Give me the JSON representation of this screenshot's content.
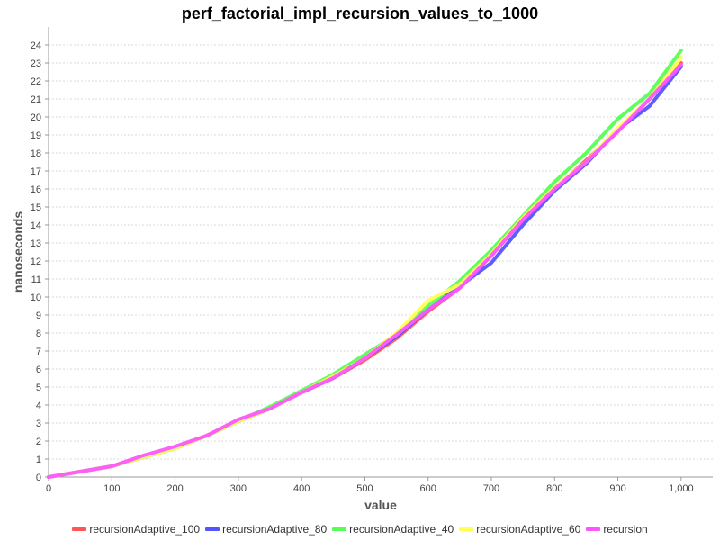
{
  "chart_data": {
    "type": "line",
    "title": "perf_factorial_impl_recursion_values_to_1000",
    "xlabel": "value",
    "ylabel": "nanoseconds",
    "xlim": [
      0,
      1050
    ],
    "ylim": [
      0,
      25
    ],
    "x_ticks": [
      "0",
      "100",
      "200",
      "300",
      "400",
      "500",
      "600",
      "700",
      "800",
      "900",
      "1,000"
    ],
    "y_ticks": [
      "0",
      "1",
      "2",
      "3",
      "4",
      "5",
      "6",
      "7",
      "8",
      "9",
      "10",
      "11",
      "12",
      "13",
      "14",
      "15",
      "16",
      "17",
      "18",
      "19",
      "20",
      "21",
      "22",
      "23",
      "24"
    ],
    "grid": true,
    "legend_position": "bottom",
    "x": [
      0,
      50,
      100,
      150,
      200,
      250,
      300,
      350,
      400,
      450,
      500,
      550,
      600,
      650,
      700,
      750,
      800,
      850,
      900,
      950,
      1000
    ],
    "series": [
      {
        "name": "recursionAdaptive_100",
        "color": "#ff5555",
        "values": [
          0,
          0.3,
          0.6,
          1.1,
          1.6,
          2.3,
          3.1,
          3.8,
          4.7,
          5.5,
          6.5,
          7.7,
          9.2,
          10.5,
          12.3,
          14.3,
          16.0,
          17.6,
          19.2,
          21.0,
          23.0
        ]
      },
      {
        "name": "recursionAdaptive_80",
        "color": "#5555ff",
        "values": [
          0,
          0.3,
          0.6,
          1.1,
          1.6,
          2.3,
          3.1,
          3.8,
          4.7,
          5.5,
          6.6,
          7.8,
          9.3,
          10.6,
          11.9,
          14.0,
          15.9,
          17.4,
          19.3,
          20.6,
          22.8
        ]
      },
      {
        "name": "recursionAdaptive_40",
        "color": "#55ff55",
        "values": [
          0,
          0.3,
          0.6,
          1.1,
          1.6,
          2.3,
          3.1,
          3.9,
          4.8,
          5.7,
          6.8,
          7.9,
          9.5,
          10.9,
          12.6,
          14.5,
          16.4,
          18.0,
          19.9,
          21.3,
          23.7
        ]
      },
      {
        "name": "recursionAdaptive_60",
        "color": "#ffff55",
        "values": [
          0,
          0.3,
          0.6,
          1.1,
          1.6,
          2.3,
          3.1,
          3.8,
          4.7,
          5.6,
          6.6,
          8.0,
          9.8,
          10.7,
          12.4,
          14.4,
          16.1,
          17.5,
          19.4,
          21.0,
          23.3
        ]
      },
      {
        "name": "recursion",
        "color": "#ff55ff",
        "values": [
          0,
          0.3,
          0.6,
          1.2,
          1.7,
          2.3,
          3.2,
          3.8,
          4.7,
          5.5,
          6.6,
          7.9,
          9.3,
          10.5,
          12.3,
          14.3,
          16.0,
          17.5,
          19.2,
          21.0,
          22.9
        ]
      }
    ]
  }
}
